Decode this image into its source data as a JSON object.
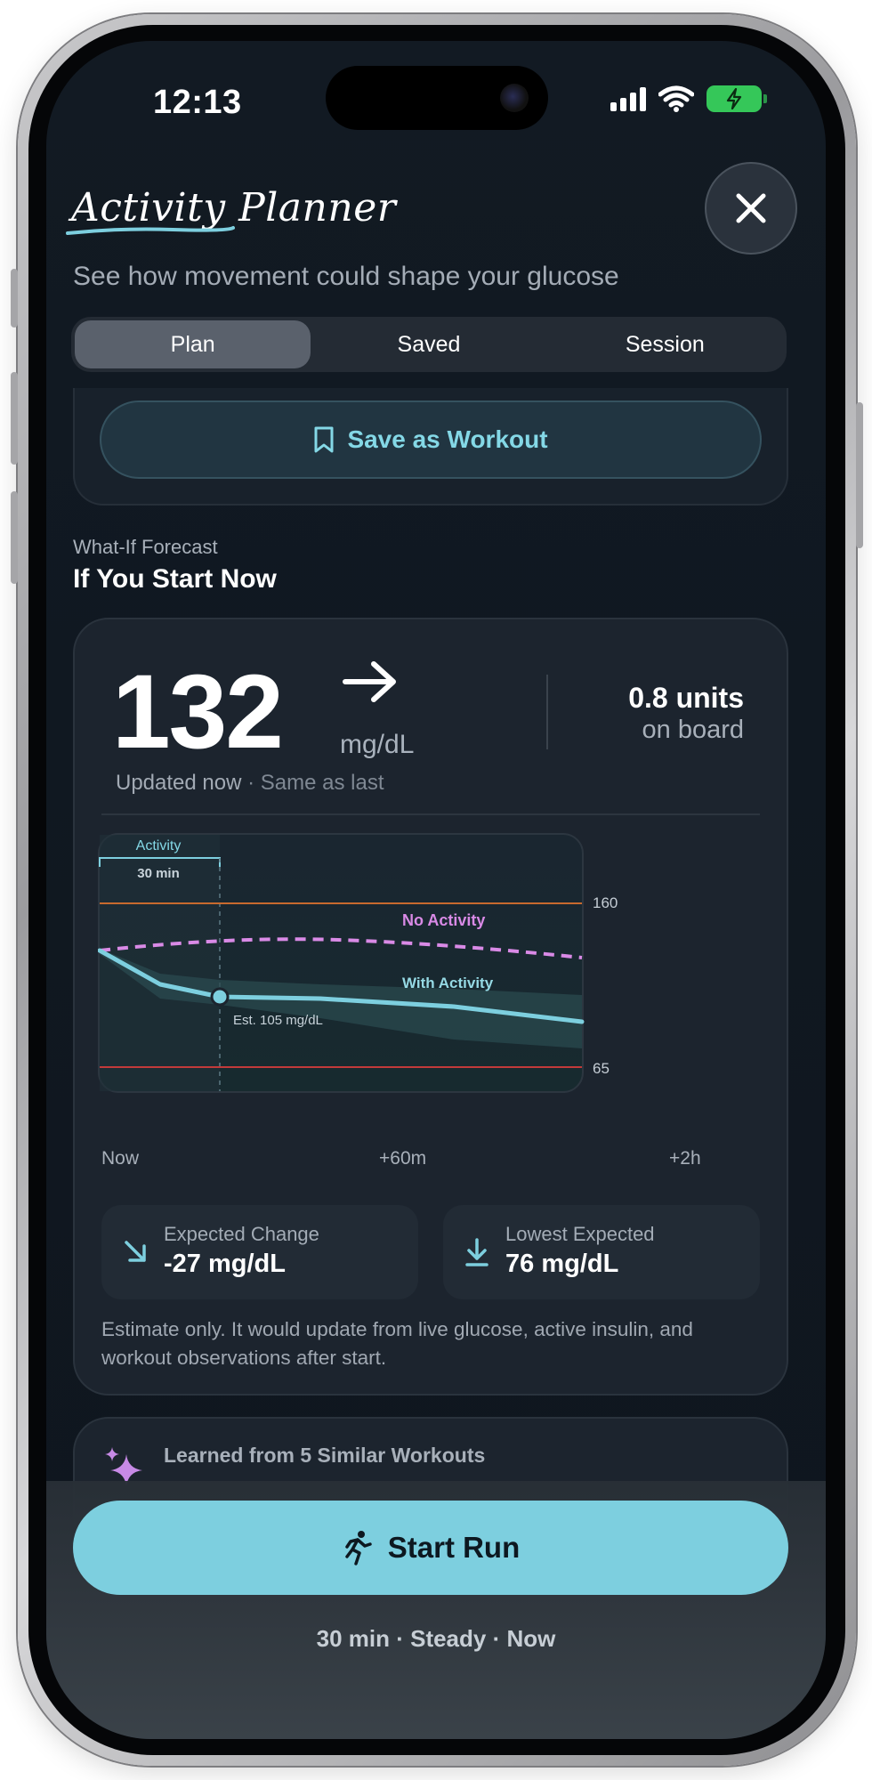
{
  "status_bar": {
    "time": "12:13"
  },
  "header": {
    "title": "Activity Planner",
    "subtitle": "See how movement could shape your glucose"
  },
  "tabs": [
    {
      "label": "Plan",
      "active": true
    },
    {
      "label": "Saved",
      "active": false
    },
    {
      "label": "Session",
      "active": false
    }
  ],
  "save_button": {
    "label": "Save as Workout",
    "icon": "bookmark-icon"
  },
  "forecast": {
    "kicker": "What-If Forecast",
    "title": "If You Start Now",
    "glucose_value": "132",
    "glucose_unit": "mg/dL",
    "trend": "steady-right-arrow",
    "updated": "Updated now",
    "updated_note": "· Same as last",
    "iob_value": "0.8 units",
    "iob_label": "on board",
    "chart": {
      "activity_label": "Activity",
      "activity_duration": "30 min",
      "high_threshold": "160",
      "low_threshold": "65",
      "no_activity_label": "No Activity",
      "with_activity_label": "With Activity",
      "estimate_label": "Est. 105 mg/dL",
      "x_labels": [
        "Now",
        "+60m",
        "+2h"
      ]
    },
    "stats": [
      {
        "label": "Expected Change",
        "value": "-27 mg/dL",
        "icon": "arrow-down-right-icon"
      },
      {
        "label": "Lowest Expected",
        "value": "76 mg/dL",
        "icon": "arrow-down-to-line-icon"
      }
    ],
    "disclaimer": "Estimate only. It would update from live glucose, active insulin, and workout observations after start."
  },
  "learned": {
    "title": "Learned from 5 Similar Workouts",
    "icon": "sparkle-icon"
  },
  "start": {
    "label": "Start Run",
    "icon": "runner-icon",
    "subtitle": "30 min · Steady · Now"
  },
  "colors": {
    "accent": "#7dcfdf",
    "no_activity": "#d98ae6",
    "high_line": "#c86a2e",
    "low_line": "#c23a3a"
  },
  "chart_data": {
    "type": "line",
    "x": [
      "Now",
      "+60m",
      "+2h"
    ],
    "series": [
      {
        "name": "No Activity",
        "style": "dashed",
        "color": "#d98ae6"
      },
      {
        "name": "With Activity",
        "style": "solid",
        "color": "#7dcfdf",
        "annotation": "Est. 105 mg/dL"
      }
    ],
    "thresholds": [
      {
        "value": 160,
        "color": "#c86a2e"
      },
      {
        "value": 65,
        "color": "#c23a3a"
      }
    ],
    "shaded_region": {
      "label": "Activity",
      "duration": "30 min"
    },
    "grid": false
  }
}
